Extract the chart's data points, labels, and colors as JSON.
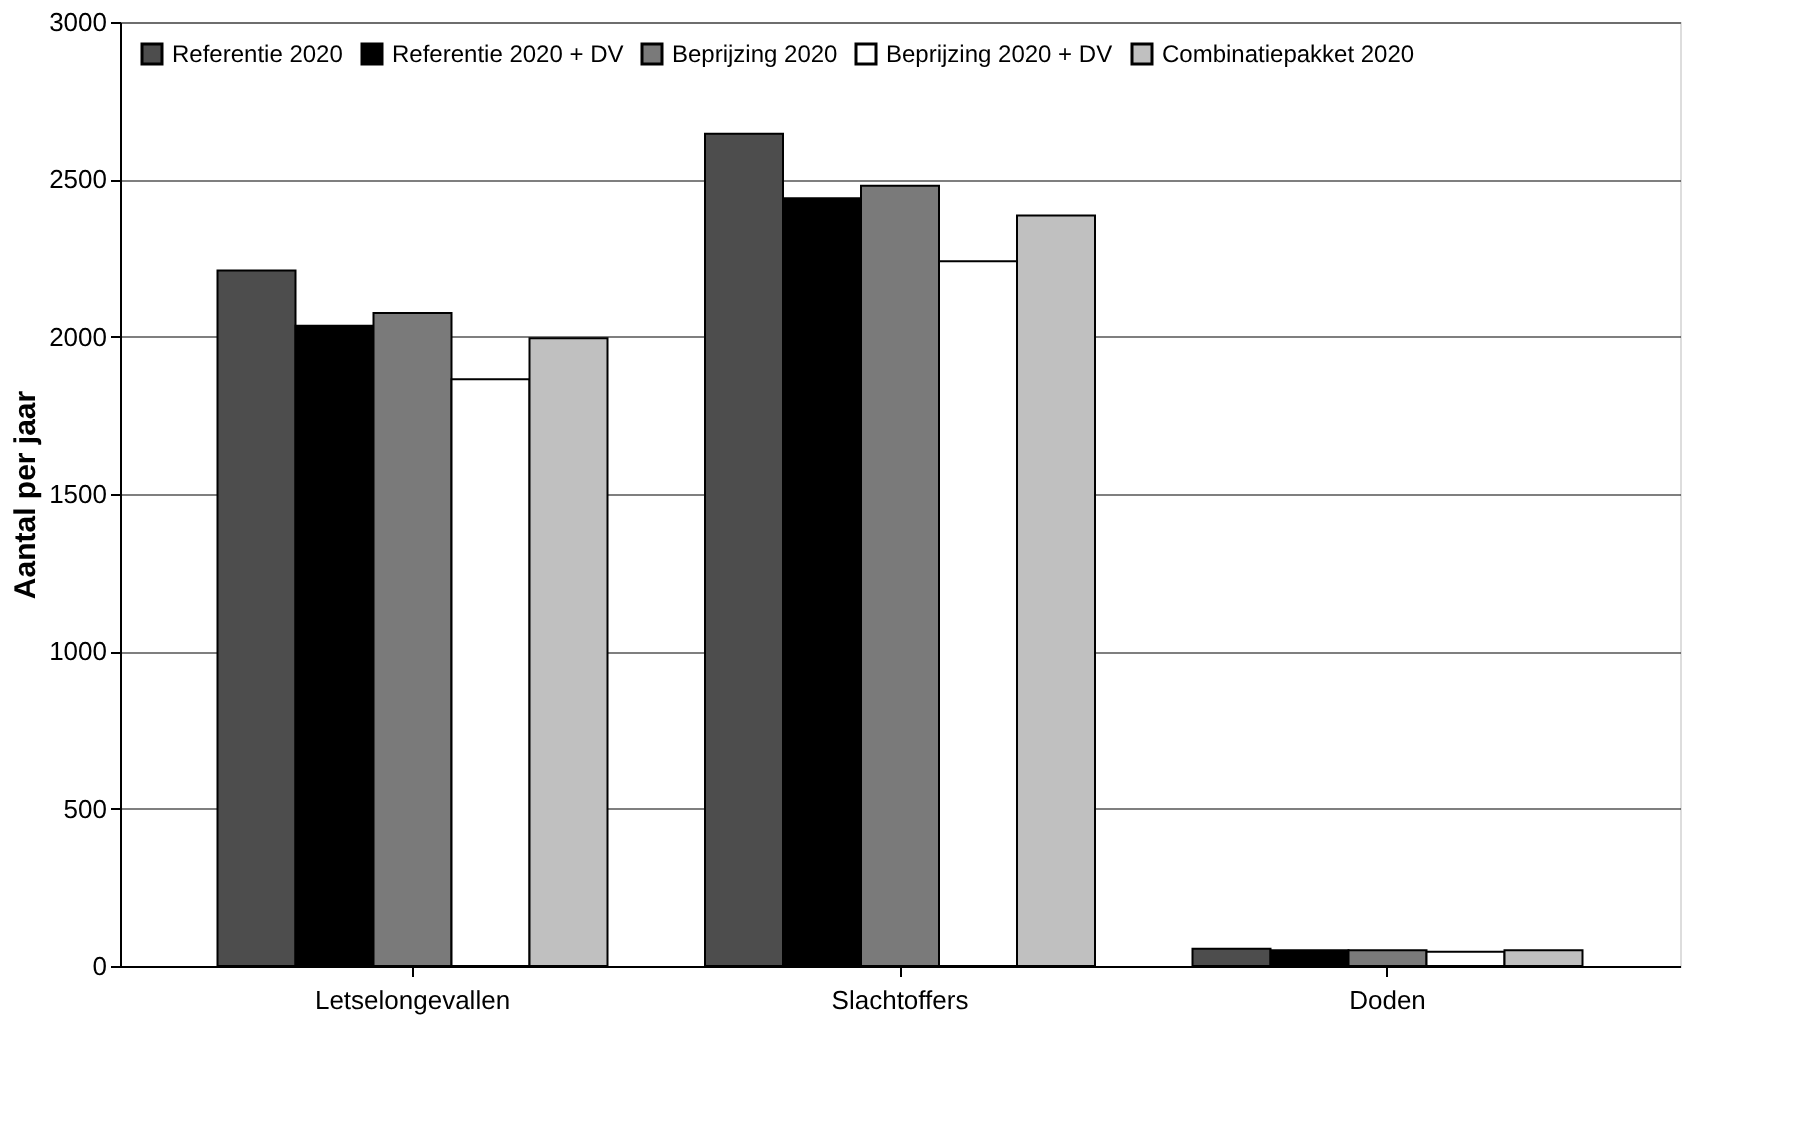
{
  "chart_data": {
    "type": "bar",
    "ylabel": "Aantal per jaar",
    "categories": [
      "Letselongevallen",
      "Slachtoffers",
      "Doden"
    ],
    "series": [
      {
        "name": "Referentie 2020",
        "color": "#4d4d4d",
        "values": [
          2210,
          2645,
          55
        ]
      },
      {
        "name": "Referentie 2020 + DV",
        "color": "#000000",
        "values": [
          2035,
          2440,
          50
        ]
      },
      {
        "name": "Beprijzing 2020",
        "color": "#7a7a7a",
        "values": [
          2075,
          2480,
          50
        ]
      },
      {
        "name": "Beprijzing 2020 + DV",
        "color": "#ffffff",
        "values": [
          1865,
          2240,
          45
        ]
      },
      {
        "name": "Combinatiepakket 2020",
        "color": "#c0c0c0",
        "values": [
          1995,
          2385,
          50
        ]
      }
    ],
    "ylim": [
      0,
      3000
    ],
    "yticks": [
      0,
      500,
      1000,
      1500,
      2000,
      2500,
      3000
    ],
    "grid": "y",
    "legend": "top"
  }
}
